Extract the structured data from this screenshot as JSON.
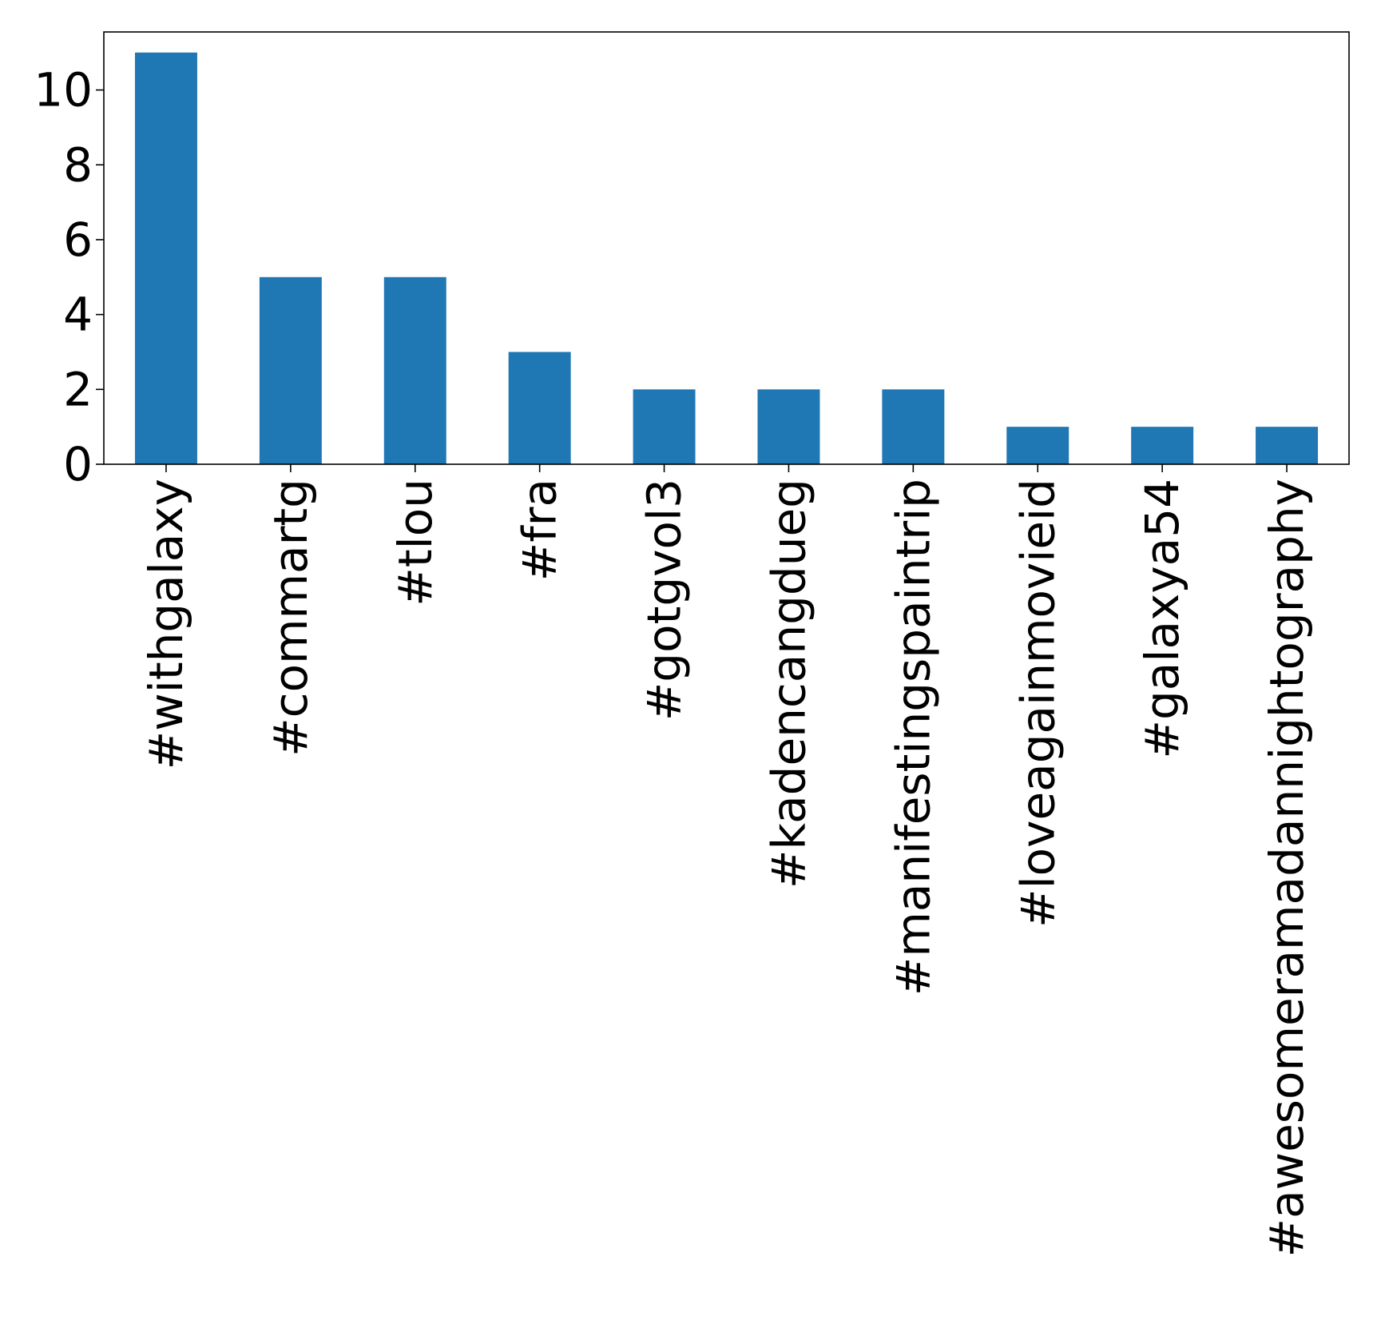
{
  "chart_data": {
    "type": "bar",
    "title": "",
    "xlabel": "",
    "ylabel": "",
    "categories": [
      "#withgalaxy",
      "#commartg",
      "#tlou",
      "#fra",
      "#gotgvol3",
      "#kadencangdueg",
      "#manifestingspaintrip",
      "#loveagainmovieid",
      "#galaxya54",
      "#awesomeramadannightography"
    ],
    "values": [
      11,
      5,
      5,
      3,
      2,
      2,
      2,
      1,
      1,
      1
    ],
    "ylim": [
      0,
      11.55
    ],
    "yticks": [
      0,
      2,
      4,
      6,
      8,
      10
    ],
    "bar_color": "#1f77b4",
    "grid": false,
    "legend": "none",
    "x_tick_rotation": "vertical"
  }
}
